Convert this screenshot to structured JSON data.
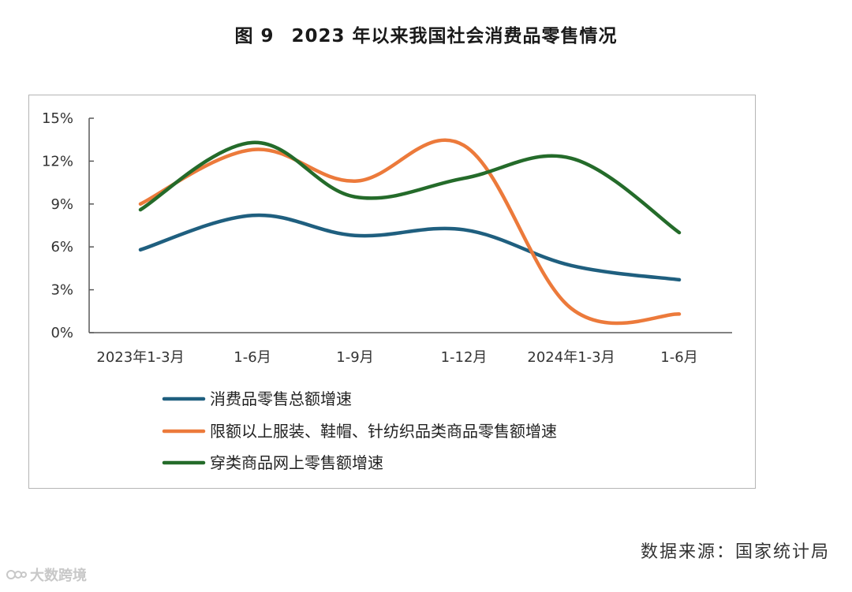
{
  "figure": {
    "number": "图 9",
    "title": "2023 年以来我国社会消费品零售情况",
    "source": "数据来源：国家统计局",
    "watermark": "大数跨境"
  },
  "chart_data": {
    "type": "line",
    "title": "2023 年以来我国社会消费品零售情况",
    "xlabel": "",
    "ylabel": "",
    "categories": [
      "2023年1-3月",
      "1-6月",
      "1-9月",
      "1-12月",
      "2024年1-3月",
      "1-6月"
    ],
    "yticks": [
      "0%",
      "3%",
      "6%",
      "9%",
      "12%",
      "15%"
    ],
    "ylim": [
      0,
      15
    ],
    "grid": false,
    "legend_position": "bottom",
    "series": [
      {
        "name": "消费品零售总额增速",
        "color": "#1f5f7f",
        "values": [
          5.8,
          8.2,
          6.8,
          7.2,
          4.7,
          3.7
        ]
      },
      {
        "name": "限额以上服装、鞋帽、针纺织品类商品零售额增速",
        "color": "#ec7a3b",
        "values": [
          9.0,
          12.8,
          10.6,
          13.1,
          1.7,
          1.3
        ]
      },
      {
        "name": "穿类商品网上零售额增速",
        "color": "#246b2a",
        "values": [
          8.6,
          13.3,
          9.5,
          10.8,
          12.2,
          7.0
        ]
      }
    ]
  }
}
